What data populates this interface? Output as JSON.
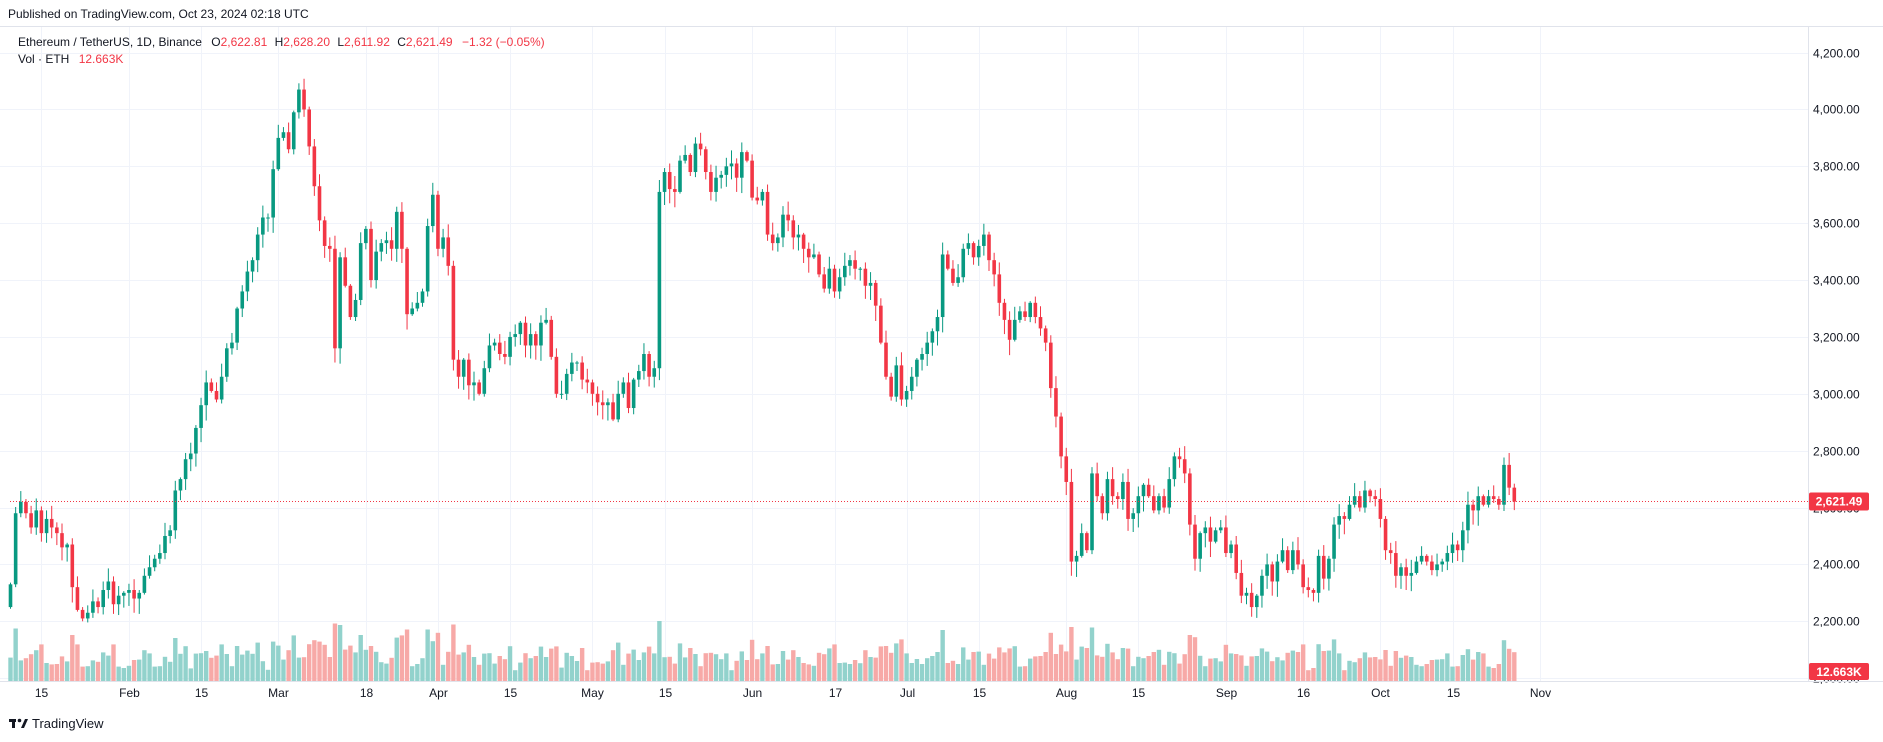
{
  "published": "Published on TradingView.com, Oct 23, 2024 02:18 UTC",
  "legend": {
    "symbol": "Ethereum / TetherUS, 1D, Binance",
    "open_label": "O",
    "open": "2,622.81",
    "high_label": "H",
    "high": "2,628.20",
    "low_label": "L",
    "low": "2,611.92",
    "close_label": "C",
    "close": "2,621.49",
    "change": "−1.32 (−0.05%)",
    "vol_label": "Vol · ETH",
    "vol_value": "12.663K"
  },
  "price_tag": "2,621.49",
  "volume_tag": "12.663K",
  "brand": "TradingView",
  "colors": {
    "up": "#089981",
    "down": "#f23645",
    "vol_up": "#92d2cc",
    "vol_down": "#f7a9a7",
    "grid": "#f0f3fa",
    "axis_text": "#131722"
  },
  "chart_data": {
    "type": "candlestick",
    "title": "Ethereum / TetherUS, 1D, Binance",
    "y_ticks": [
      "4,200.00",
      "4,000.00",
      "3,800.00",
      "3,600.00",
      "3,400.00",
      "3,200.00",
      "3,000.00",
      "2,800.00",
      "2,600.00",
      "2,400.00",
      "2,200.00",
      "2,000.00"
    ],
    "y_tick_values": [
      4200,
      4000,
      3800,
      3600,
      3400,
      3200,
      3000,
      2800,
      2600,
      2400,
      2200,
      2000
    ],
    "x_ticks": [
      "15",
      "Feb",
      "15",
      "Mar",
      "18",
      "Apr",
      "15",
      "May",
      "15",
      "Jun",
      "17",
      "Jul",
      "15",
      "Aug",
      "15",
      "Sep",
      "16",
      "Oct",
      "15",
      "Nov"
    ],
    "x_tick_dates": [
      "2024-01-15",
      "2024-02-01",
      "2024-02-15",
      "2024-03-01",
      "2024-03-18",
      "2024-04-01",
      "2024-04-15",
      "2024-05-01",
      "2024-05-15",
      "2024-06-01",
      "2024-06-17",
      "2024-07-01",
      "2024-07-15",
      "2024-08-01",
      "2024-08-15",
      "2024-09-01",
      "2024-09-16",
      "2024-10-01",
      "2024-10-15",
      "2024-11-01"
    ],
    "ylim": [
      1990,
      4290
    ],
    "last_price": 2621.49,
    "last_volume": "12.663K",
    "start_date": "2024-01-09",
    "close": [
      2330,
      2580,
      2620,
      2580,
      2530,
      2590,
      2510,
      2560,
      2530,
      2510,
      2460,
      2470,
      2320,
      2240,
      2210,
      2230,
      2270,
      2250,
      2310,
      2340,
      2260,
      2290,
      2300,
      2310,
      2280,
      2300,
      2360,
      2390,
      2420,
      2440,
      2500,
      2520,
      2660,
      2700,
      2770,
      2790,
      2880,
      2960,
      3040,
      3010,
      2980,
      3060,
      3160,
      3180,
      3300,
      3360,
      3430,
      3470,
      3560,
      3620,
      3620,
      3790,
      3900,
      3920,
      3860,
      3990,
      4070,
      4000,
      3870,
      3730,
      3610,
      3520,
      3510,
      3160,
      3480,
      3380,
      3270,
      3330,
      3530,
      3580,
      3400,
      3500,
      3530,
      3540,
      3510,
      3640,
      3510,
      3280,
      3300,
      3320,
      3360,
      3590,
      3700,
      3510,
      3550,
      3450,
      3120,
      3060,
      3120,
      3030,
      3040,
      3000,
      3090,
      3170,
      3180,
      3140,
      3130,
      3200,
      3210,
      3250,
      3170,
      3210,
      3170,
      3250,
      3260,
      3130,
      3000,
      3000,
      3070,
      3110,
      3110,
      3050,
      3040,
      3000,
      2970,
      2960,
      2970,
      2910,
      3000,
      3040,
      2950,
      3050,
      3080,
      3140,
      3060,
      3090,
      3710,
      3780,
      3720,
      3710,
      3820,
      3840,
      3780,
      3880,
      3860,
      3780,
      3710,
      3760,
      3770,
      3800,
      3810,
      3760,
      3850,
      3820,
      3690,
      3680,
      3710,
      3560,
      3530,
      3550,
      3630,
      3610,
      3550,
      3560,
      3510,
      3480,
      3490,
      3420,
      3370,
      3440,
      3360,
      3410,
      3450,
      3470,
      3440,
      3440,
      3380,
      3390,
      3310,
      3180,
      3060,
      2990,
      3100,
      2980,
      3010,
      3060,
      3120,
      3140,
      3180,
      3220,
      3270,
      3490,
      3440,
      3390,
      3410,
      3510,
      3530,
      3480,
      3520,
      3560,
      3470,
      3420,
      3320,
      3260,
      3190,
      3260,
      3290,
      3270,
      3320,
      3270,
      3230,
      3180,
      3020,
      2920,
      2780,
      2690,
      2410,
      2430,
      2510,
      2450,
      2720,
      2640,
      2580,
      2700,
      2640,
      2630,
      2690,
      2560,
      2580,
      2640,
      2680,
      2640,
      2590,
      2640,
      2600,
      2700,
      2780,
      2770,
      2720,
      2540,
      2420,
      2510,
      2530,
      2480,
      2520,
      2530,
      2440,
      2470,
      2370,
      2290,
      2300,
      2250,
      2290,
      2360,
      2400,
      2340,
      2410,
      2450,
      2380,
      2450,
      2400,
      2320,
      2310,
      2300,
      2430,
      2350,
      2420,
      2540,
      2570,
      2560,
      2610,
      2640,
      2600,
      2660,
      2640,
      2630,
      2560,
      2450,
      2440,
      2360,
      2390,
      2360,
      2370,
      2410,
      2430,
      2410,
      2380,
      2400,
      2410,
      2440,
      2470,
      2450,
      2520,
      2610,
      2590,
      2640,
      2610,
      2640,
      2630,
      2610,
      2750,
      2670,
      2621
    ]
  }
}
